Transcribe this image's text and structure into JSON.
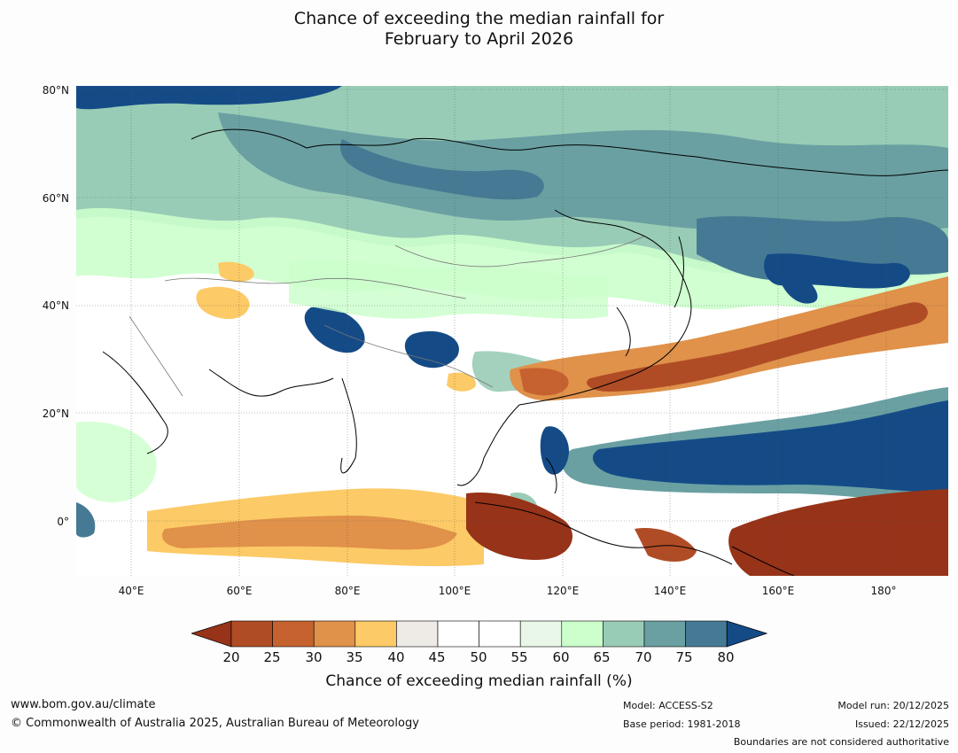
{
  "title": {
    "line1": "Chance of exceeding the median rainfall for",
    "line2": "February to April 2026"
  },
  "map": {
    "lat_labels": [
      "80°N",
      "60°N",
      "40°N",
      "20°N",
      "0°"
    ],
    "lon_labels": [
      "40°E",
      "60°E",
      "80°E",
      "100°E",
      "120°E",
      "140°E",
      "160°E",
      "180°"
    ]
  },
  "colorbar": {
    "ticks": [
      "20",
      "25",
      "30",
      "35",
      "40",
      "45",
      "50",
      "55",
      "60",
      "65",
      "70",
      "75",
      "80"
    ],
    "label": "Chance of exceeding median rainfall (%)",
    "colors": [
      "#963318",
      "#b04c25",
      "#c6622f",
      "#e0914a",
      "#fcca66",
      "#eeebe6",
      "#ffffff",
      "#ffffff",
      "#e9f7e9",
      "#ccffcc",
      "#99ccb6",
      "#6aa0a2",
      "#467a94",
      "#144b87"
    ]
  },
  "footer": {
    "website": "www.bom.gov.au/climate",
    "copyright": "© Commonwealth of Australia 2025, Australian Bureau of Meteorology",
    "model": "Model: ACCESS-S2",
    "base_period": "Base period: 1981-2018",
    "model_run": "Model run: 20/12/2025",
    "issued": "Issued: 22/12/2025",
    "disclaimer": "Boundaries are not considered authoritative"
  }
}
